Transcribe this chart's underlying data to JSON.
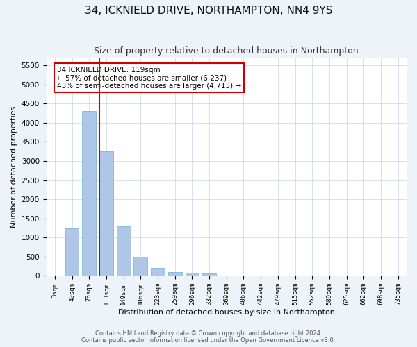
{
  "title": "34, ICKNIELD DRIVE, NORTHAMPTON, NN4 9YS",
  "subtitle": "Size of property relative to detached houses in Northampton",
  "xlabel": "Distribution of detached houses by size in Northampton",
  "ylabel": "Number of detached properties",
  "categories": [
    "3sqm",
    "40sqm",
    "76sqm",
    "113sqm",
    "149sqm",
    "186sqm",
    "223sqm",
    "259sqm",
    "296sqm",
    "332sqm",
    "369sqm",
    "406sqm",
    "442sqm",
    "479sqm",
    "515sqm",
    "552sqm",
    "589sqm",
    "625sqm",
    "662sqm",
    "698sqm",
    "735sqm"
  ],
  "values": [
    0,
    1250,
    4300,
    3250,
    1300,
    490,
    200,
    100,
    80,
    70,
    0,
    0,
    0,
    0,
    0,
    0,
    0,
    0,
    0,
    0,
    0
  ],
  "bar_color": "#aec6e8",
  "bar_edge_color": "#6baed6",
  "vline_x_index": 3,
  "vline_color": "#cc0000",
  "annotation_text": "34 ICKNIELD DRIVE: 119sqm\n← 57% of detached houses are smaller (6,237)\n43% of semi-detached houses are larger (4,713) →",
  "annotation_box_color": "#ffffff",
  "annotation_box_edge": "#cc0000",
  "ylim": [
    0,
    5700
  ],
  "yticks": [
    0,
    500,
    1000,
    1500,
    2000,
    2500,
    3000,
    3500,
    4000,
    4500,
    5000,
    5500
  ],
  "footer_line1": "Contains HM Land Registry data © Crown copyright and database right 2024.",
  "footer_line2": "Contains public sector information licensed under the Open Government Licence v3.0.",
  "bg_color": "#eef2f9",
  "plot_bg_color": "#ffffff",
  "title_fontsize": 11,
  "subtitle_fontsize": 9,
  "xlabel_fontsize": 8,
  "ylabel_fontsize": 8
}
